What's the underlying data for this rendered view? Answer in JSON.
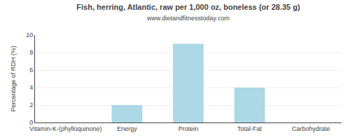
{
  "chart_data": {
    "type": "bar",
    "title": "Fish, herring, Atlantic, raw per 1,000 oz, boneless (or 28.35 g)",
    "subtitle": "www.dietandfitnesstoday.com",
    "categories": [
      "Vitamin-K-(phylloquinone)",
      "Energy",
      "Protein",
      "Total-Fat",
      "Carbohydrate"
    ],
    "values": [
      0.0,
      2.0,
      9.0,
      4.0,
      0.0
    ],
    "color": "#add8e6",
    "ylabel": "Percentage of RDH (%)",
    "ylim": [
      0,
      10
    ],
    "yticks": [
      0,
      2,
      4,
      6,
      8,
      10
    ],
    "grid": true
  }
}
